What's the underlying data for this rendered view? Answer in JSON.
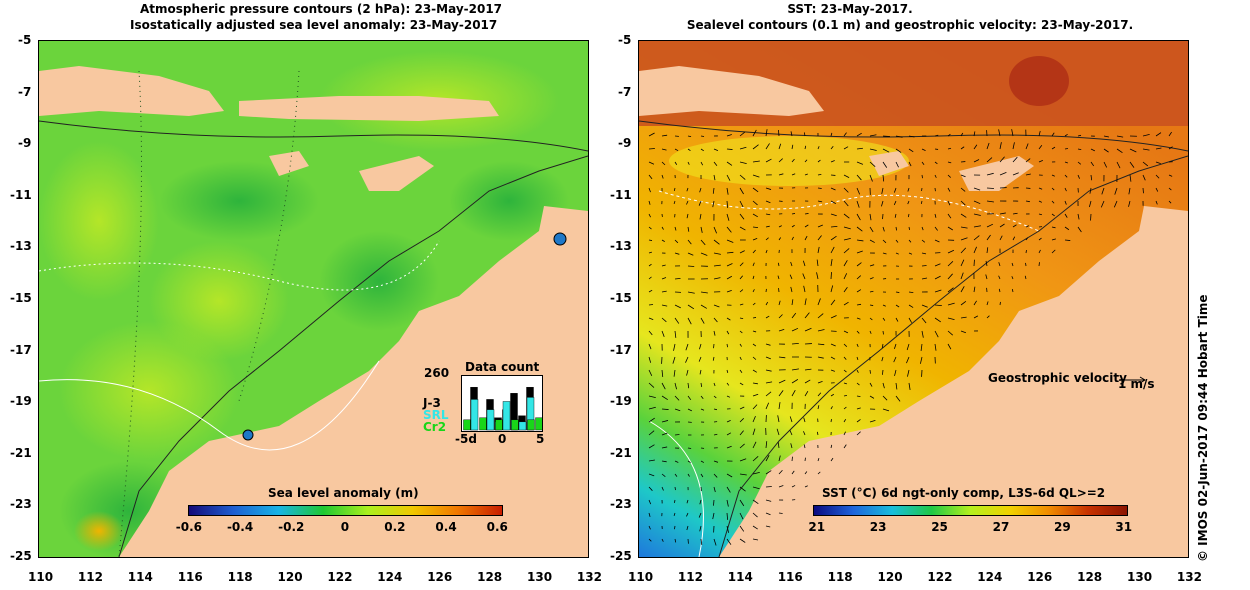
{
  "left_panel": {
    "title_line1": "Atmospheric pressure contours (2 hPa): 23-May-2017",
    "title_line2": "Isostatically adjusted sea level anomaly: 23-May-2017",
    "colorbar_title": "Sea level anomaly (m)",
    "colorbar_ticks": [
      "-0.6",
      "-0.4",
      "-0.2",
      "0",
      "0.2",
      "0.4",
      "0.6"
    ],
    "colorbar_colors": [
      "#140a78",
      "#1e5fd2",
      "#19b4e6",
      "#1ec832",
      "#aaf01e",
      "#f0c800",
      "#f07800",
      "#c81e00"
    ],
    "land_color": "#f8c8a0",
    "data_count": {
      "title": "Data count",
      "max_label": "260",
      "missions": [
        {
          "name": "J-3",
          "color": "#000000"
        },
        {
          "name": "SRL",
          "color": "#33e6e6"
        },
        {
          "name": "Cr2",
          "color": "#19d619"
        }
      ],
      "x_ticks": [
        "-5d",
        "0",
        "5"
      ],
      "j3_counts": [
        0,
        210,
        0,
        150,
        60,
        100,
        180,
        70,
        210,
        0
      ],
      "srl_counts": [
        0,
        150,
        0,
        100,
        40,
        140,
        50,
        40,
        160,
        0
      ],
      "cr2_counts": [
        50,
        0,
        60,
        0,
        50,
        0,
        50,
        0,
        50,
        60
      ]
    }
  },
  "right_panel": {
    "title_line1": "SST: 23-May-2017.",
    "title_line2": "Sealevel contours (0.1 m) and geostrophic velocity: 23-May-2017.",
    "colorbar_title": "SST (°C) 6d ngt-only comp, L3S-6d QL>=2",
    "colorbar_ticks": [
      "21",
      "23",
      "25",
      "27",
      "29",
      "31"
    ],
    "colorbar_colors": [
      "#0a0a80",
      "#1e64dc",
      "#19bedc",
      "#1ec846",
      "#b4f01e",
      "#f0d200",
      "#f08c00",
      "#c83200",
      "#8c1400"
    ],
    "velocity_legend": "Geostrophic velocity",
    "velocity_scale": "1 m/s",
    "credit": "© IMOS 02-Jun-2017 09:44 Hobart Time"
  },
  "axes": {
    "lat_ticks": [
      "-5",
      "-7",
      "-9",
      "-11",
      "-13",
      "-15",
      "-17",
      "-19",
      "-21",
      "-23",
      "-25"
    ],
    "lon_ticks": [
      "110",
      "112",
      "114",
      "116",
      "118",
      "120",
      "122",
      "124",
      "126",
      "128",
      "130",
      "132"
    ],
    "lat_range": [
      -25,
      -5
    ],
    "lon_range": [
      110,
      132
    ]
  }
}
